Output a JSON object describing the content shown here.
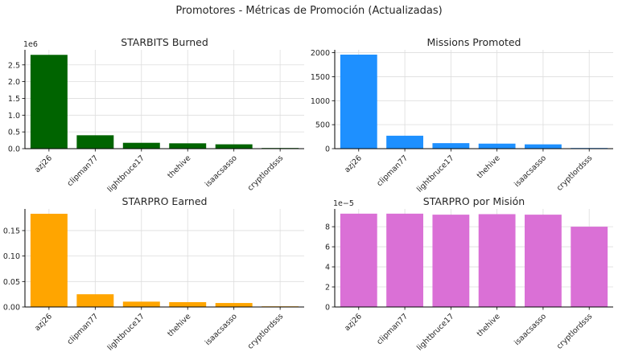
{
  "suptitle": "Promotores - Métricas de Promoción (Actualizadas)",
  "chart_data": [
    {
      "type": "bar",
      "title": "STARBITS Burned",
      "categories": [
        "azj26",
        "clipman77",
        "lightbruce17",
        "thehive",
        "isaacsasso",
        "cryptlordsss"
      ],
      "values": [
        2800000,
        400000,
        175000,
        160000,
        130000,
        3000
      ],
      "ylim": [
        0,
        2950000
      ],
      "yticks": [
        0,
        500000,
        1000000,
        1500000,
        2000000,
        2500000
      ],
      "ytick_labels": [
        "0.0",
        "0.5",
        "1.0",
        "1.5",
        "2.0",
        "2.5"
      ],
      "offset_text": "1e6",
      "color": "#006400",
      "grid": true
    },
    {
      "type": "bar",
      "title": "Missions Promoted",
      "categories": [
        "azj26",
        "clipman77",
        "lightbruce17",
        "thehive",
        "isaacsasso",
        "cryptlordsss"
      ],
      "values": [
        1960,
        270,
        115,
        105,
        90,
        2
      ],
      "ylim": [
        0,
        2060
      ],
      "yticks": [
        0,
        500,
        1000,
        1500,
        2000
      ],
      "ytick_labels": [
        "0",
        "500",
        "1000",
        "1500",
        "2000"
      ],
      "offset_text": "",
      "color": "#1E90FF",
      "grid": true
    },
    {
      "type": "bar",
      "title": "STARPRO Earned",
      "categories": [
        "azj26",
        "clipman77",
        "lightbruce17",
        "thehive",
        "isaacsasso",
        "cryptlordsss"
      ],
      "values": [
        0.183,
        0.025,
        0.0105,
        0.0095,
        0.0078,
        0.0002
      ],
      "ylim": [
        0,
        0.1925
      ],
      "yticks": [
        0,
        0.05,
        0.1,
        0.15
      ],
      "ytick_labels": [
        "0.00",
        "0.05",
        "0.10",
        "0.15"
      ],
      "offset_text": "",
      "color": "#FFA500",
      "grid": true
    },
    {
      "type": "bar",
      "title": "STARPRO por Misión",
      "categories": [
        "azj26",
        "clipman77",
        "lightbruce17",
        "thehive",
        "isaacsasso",
        "cryptlordsss"
      ],
      "values": [
        9.3e-05,
        9.3e-05,
        9.2e-05,
        9.25e-05,
        9.2e-05,
        8e-05
      ],
      "ylim": [
        0,
        9.77e-05
      ],
      "yticks": [
        0,
        2e-05,
        4e-05,
        6e-05,
        8e-05
      ],
      "ytick_labels": [
        "0",
        "2",
        "4",
        "6",
        "8"
      ],
      "offset_text": "1e−5",
      "color": "#DA70D6",
      "grid": true
    }
  ]
}
